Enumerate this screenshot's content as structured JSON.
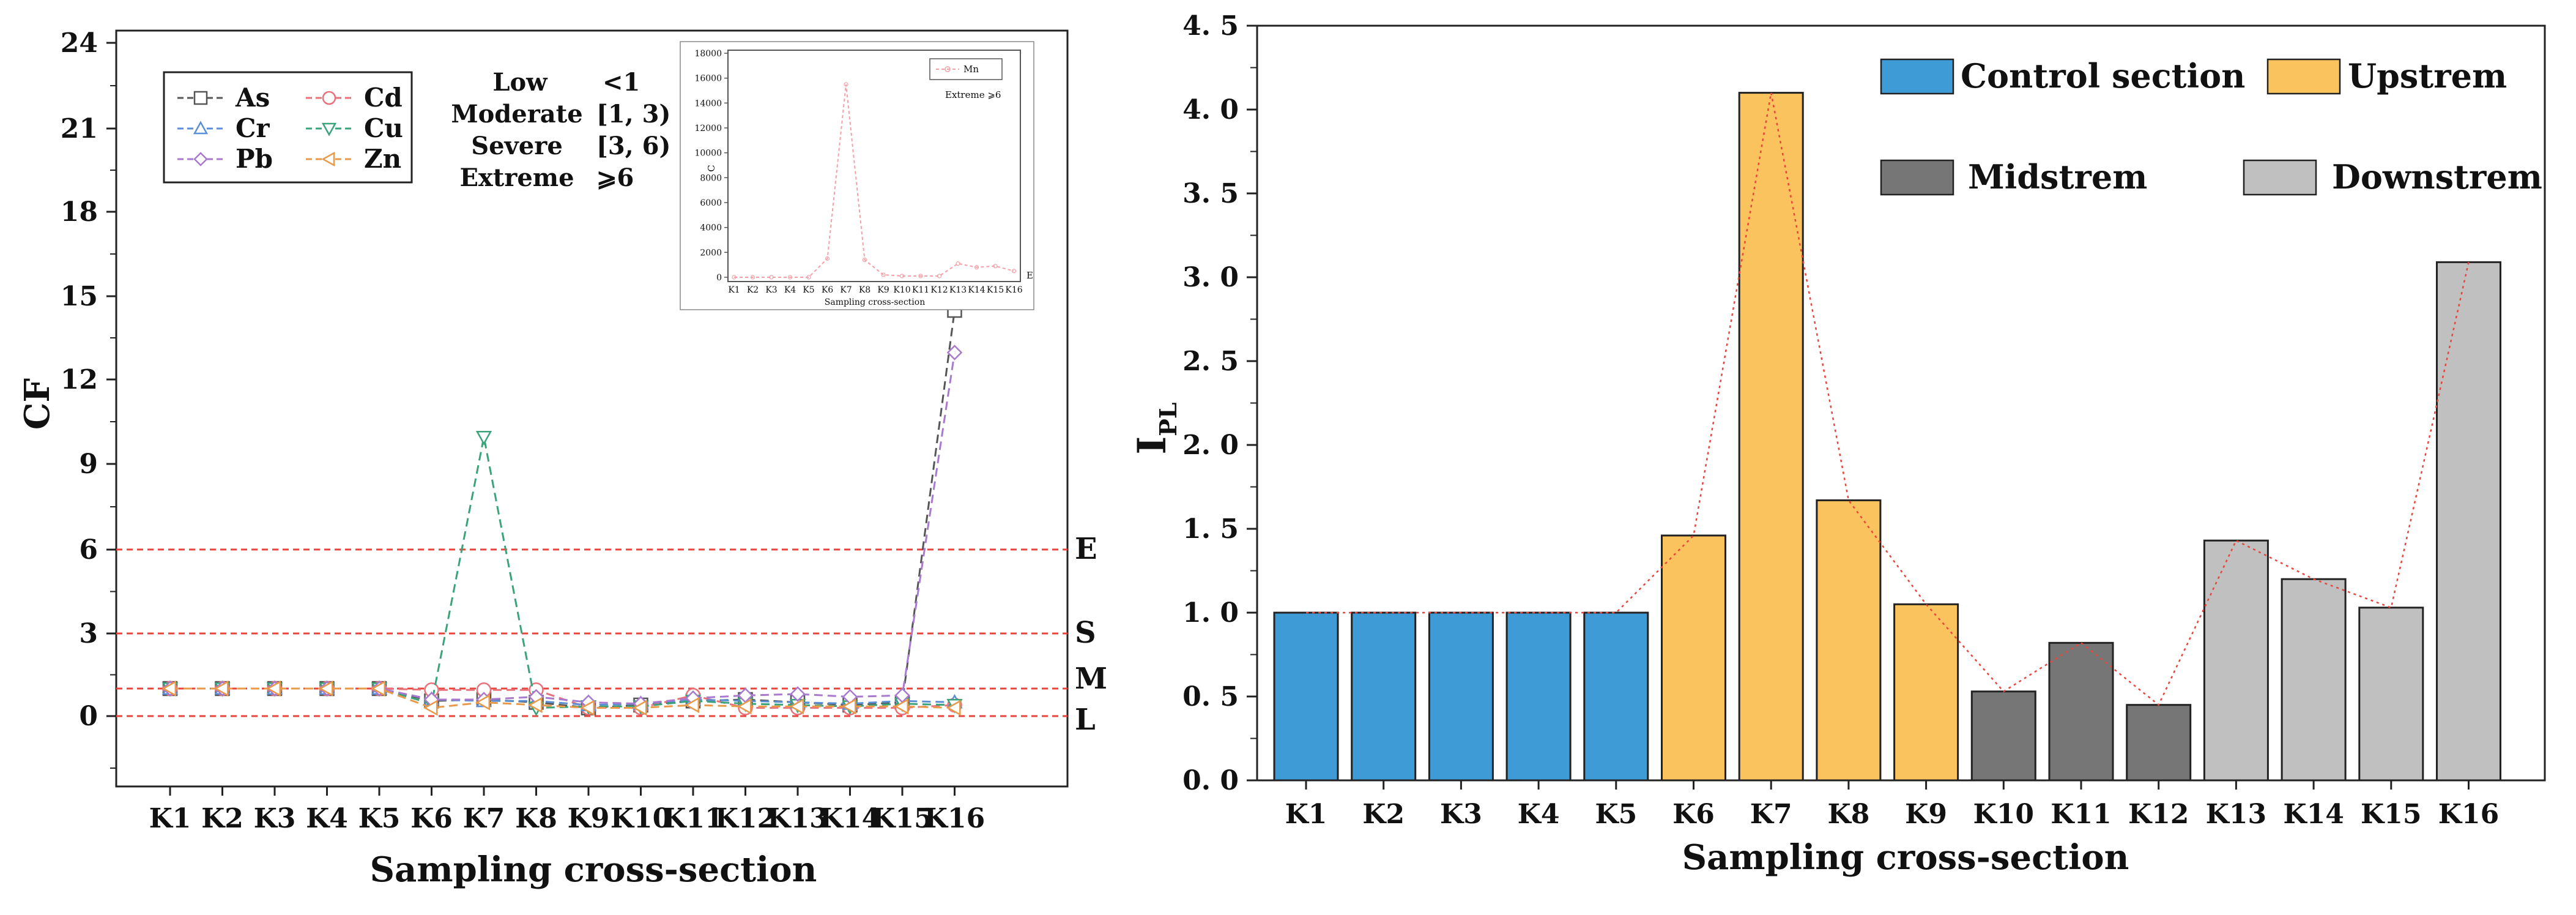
{
  "chart_data": [
    {
      "type": "line",
      "panel": "left",
      "xlabel": "Sampling cross-section",
      "ylabel": "CF",
      "categories": [
        "K1",
        "K2",
        "K3",
        "K4",
        "K5",
        "K6",
        "K7",
        "K8",
        "K9",
        "K10",
        "K11",
        "K12",
        "K13",
        "K14",
        "K15",
        "K16"
      ],
      "y_scale": "piecewise (0-3 compressed, labels as printed)",
      "y_tick_labels": [
        "0",
        "3",
        "6",
        "9",
        "12",
        "15",
        "18",
        "21",
        "24"
      ],
      "grid": false,
      "legend_position": "top-left",
      "series": [
        {
          "name": "As",
          "color": "#555555",
          "marker": "square",
          "values": [
            1,
            1,
            1,
            1,
            1,
            0.55,
            0.6,
            0.5,
            0.3,
            0.4,
            0.55,
            0.6,
            0.5,
            0.4,
            0.5,
            14.5
          ]
        },
        {
          "name": "Cd",
          "color": "#e8717a",
          "marker": "circle",
          "values": [
            1,
            1,
            1,
            1,
            1,
            0.95,
            0.95,
            0.95,
            0.3,
            0.3,
            0.75,
            0.3,
            0.3,
            0.3,
            0.3,
            0.4
          ]
        },
        {
          "name": "Cr",
          "color": "#5b8fd6",
          "marker": "triangle-up",
          "values": [
            1,
            1,
            1,
            1,
            1,
            0.6,
            0.55,
            0.55,
            0.4,
            0.45,
            0.6,
            0.55,
            0.5,
            0.45,
            0.55,
            0.5
          ]
        },
        {
          "name": "Cu",
          "color": "#3aa37a",
          "marker": "triangle-down",
          "values": [
            1,
            1,
            1,
            1,
            1,
            0.45,
            10,
            0.3,
            0.35,
            0.35,
            0.55,
            0.45,
            0.4,
            0.35,
            0.45,
            0.4
          ]
        },
        {
          "name": "Pb",
          "color": "#a879cf",
          "marker": "diamond",
          "values": [
            1,
            1,
            1,
            1,
            1,
            0.6,
            0.6,
            0.7,
            0.5,
            0.45,
            0.65,
            0.75,
            0.8,
            0.7,
            0.75,
            13
          ]
        },
        {
          "name": "Zn",
          "color": "#e89a4a",
          "marker": "left-triangle",
          "values": [
            1,
            1,
            1,
            1,
            1,
            0.3,
            0.5,
            0.4,
            0.3,
            0.3,
            0.4,
            0.35,
            0.35,
            0.35,
            0.35,
            0.3
          ]
        }
      ],
      "reference_lines": [
        {
          "label": "E",
          "value": 6
        },
        {
          "label": "S",
          "value": 3
        },
        {
          "label": "M",
          "value": 1
        },
        {
          "label": "L",
          "value": 0
        }
      ],
      "severity_table": [
        {
          "name": "Low",
          "range": "<1"
        },
        {
          "name": "Moderate",
          "range": "[1, 3)"
        },
        {
          "name": "Severe",
          "range": "[3, 6)"
        },
        {
          "name": "Extreme",
          "range": "⩾6"
        }
      ],
      "inset": {
        "type": "line",
        "legend": "Mn",
        "note": "Extreme ⩾6",
        "ylabel": "C",
        "xlabel": "Sampling cross-section",
        "y_tick_labels": [
          "0",
          "2000",
          "4000",
          "6000",
          "8000",
          "10000",
          "12000",
          "14000",
          "16000",
          "18000"
        ],
        "ylim": [
          0,
          18000
        ],
        "categories": [
          "K1",
          "K2",
          "K3",
          "K4",
          "K5",
          "K6",
          "K7",
          "K8",
          "K9",
          "K10",
          "K11",
          "K12",
          "K13",
          "K14",
          "K15",
          "K16"
        ],
        "values": [
          0,
          0,
          0,
          0,
          0,
          1500,
          15500,
          1400,
          200,
          100,
          100,
          100,
          1100,
          800,
          900,
          500
        ],
        "end_label": "E"
      }
    },
    {
      "type": "bar",
      "panel": "right",
      "xlabel": "Sampling cross-section",
      "ylabel_main": "I",
      "ylabel_sub": "PL",
      "ylim": [
        0,
        4.5
      ],
      "y_tick_labels": [
        "0. 0",
        "0. 5",
        "1. 0",
        "1. 5",
        "2. 0",
        "2. 5",
        "3. 0",
        "3. 5",
        "4. 0",
        "4. 5"
      ],
      "categories": [
        "K1",
        "K2",
        "K3",
        "K4",
        "K5",
        "K6",
        "K7",
        "K8",
        "K9",
        "K10",
        "K11",
        "K12",
        "K13",
        "K14",
        "K15",
        "K16"
      ],
      "values": [
        1.0,
        1.0,
        1.0,
        1.0,
        1.0,
        1.46,
        4.1,
        1.67,
        1.05,
        0.53,
        0.82,
        0.45,
        1.43,
        1.2,
        1.03,
        3.09
      ],
      "groups": [
        "Control section",
        "Control section",
        "Control section",
        "Control section",
        "Control section",
        "Upstrem",
        "Upstrem",
        "Upstrem",
        "Upstrem",
        "Midstrem",
        "Midstrem",
        "Midstrem",
        "Downstrem",
        "Downstrem",
        "Downstrem",
        "Downstrem"
      ],
      "legend": [
        {
          "name": "Control section",
          "color": "#3e9bd6"
        },
        {
          "name": "Upstrem",
          "color": "#fbc35d"
        },
        {
          "name": "Midstrem",
          "color": "#767676"
        },
        {
          "name": "Downstrem",
          "color": "#c0c0c0"
        }
      ],
      "trend_line_color": "#e8453c"
    }
  ]
}
